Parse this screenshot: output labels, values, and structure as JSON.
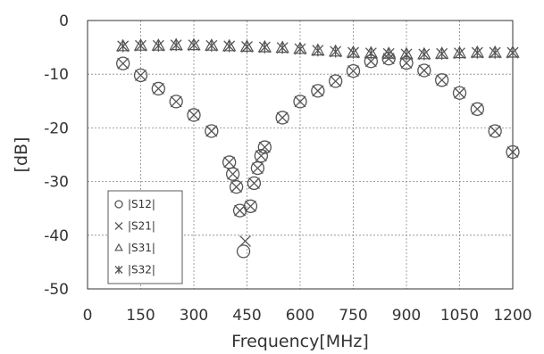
{
  "chart_data": {
    "type": "scatter",
    "title": "",
    "xlabel": "Frequency[MHz]",
    "ylabel": "[dB]",
    "xlim": [
      0,
      1200
    ],
    "ylim": [
      -50,
      0
    ],
    "xticks": [
      0,
      150,
      300,
      450,
      600,
      750,
      900,
      1050,
      1200
    ],
    "yticks": [
      0,
      -10,
      -20,
      -30,
      -40,
      -50
    ],
    "xtick_labels": [
      "0",
      "150",
      "300",
      "450",
      "600",
      "750",
      "900",
      "1050",
      "1200"
    ],
    "ytick_labels": [
      "0",
      "-10",
      "-20",
      "-30",
      "-40",
      "-50"
    ],
    "grid": "dashed",
    "legend_position": "bottom-left",
    "series": [
      {
        "name": "|S12|",
        "marker": "circle",
        "points": [
          [
            100,
            -8
          ],
          [
            150,
            -10.2
          ],
          [
            200,
            -12.7
          ],
          [
            250,
            -15.1
          ],
          [
            300,
            -17.6
          ],
          [
            350,
            -20.6
          ],
          [
            400,
            -26.4
          ],
          [
            410,
            -28.6
          ],
          [
            420,
            -31
          ],
          [
            430,
            -35.4
          ],
          [
            440,
            -43
          ],
          [
            460,
            -34.6
          ],
          [
            470,
            -30.3
          ],
          [
            480,
            -27.5
          ],
          [
            490,
            -25.2
          ],
          [
            500,
            -23.6
          ],
          [
            550,
            -18.1
          ],
          [
            600,
            -15.1
          ],
          [
            650,
            -13.1
          ],
          [
            700,
            -11.3
          ],
          [
            750,
            -9.4
          ],
          [
            800,
            -7.6
          ],
          [
            850,
            -7.1
          ],
          [
            900,
            -7.9
          ],
          [
            950,
            -9.3
          ],
          [
            1000,
            -11.1
          ],
          [
            1050,
            -13.5
          ],
          [
            1100,
            -16.5
          ],
          [
            1150,
            -20.6
          ],
          [
            1200,
            -24.5
          ]
        ]
      },
      {
        "name": "|S21|",
        "marker": "x",
        "points": [
          [
            100,
            -8
          ],
          [
            150,
            -10.2
          ],
          [
            200,
            -12.7
          ],
          [
            250,
            -15.1
          ],
          [
            300,
            -17.6
          ],
          [
            350,
            -20.6
          ],
          [
            400,
            -26.4
          ],
          [
            410,
            -28.6
          ],
          [
            420,
            -31
          ],
          [
            430,
            -35.4
          ],
          [
            445,
            -41.1
          ],
          [
            460,
            -34.6
          ],
          [
            470,
            -30.3
          ],
          [
            480,
            -27.5
          ],
          [
            490,
            -25.2
          ],
          [
            500,
            -23.6
          ],
          [
            550,
            -18.1
          ],
          [
            600,
            -15.1
          ],
          [
            650,
            -13.1
          ],
          [
            700,
            -11.3
          ],
          [
            750,
            -9.4
          ],
          [
            800,
            -7.6
          ],
          [
            850,
            -7.1
          ],
          [
            900,
            -7.9
          ],
          [
            950,
            -9.3
          ],
          [
            1000,
            -11.1
          ],
          [
            1050,
            -13.5
          ],
          [
            1100,
            -16.5
          ],
          [
            1150,
            -20.6
          ],
          [
            1200,
            -24.5
          ]
        ]
      },
      {
        "name": "|S31|",
        "marker": "triangle",
        "points": [
          [
            100,
            -4.8
          ],
          [
            150,
            -4.7
          ],
          [
            200,
            -4.7
          ],
          [
            250,
            -4.6
          ],
          [
            300,
            -4.6
          ],
          [
            350,
            -4.7
          ],
          [
            400,
            -4.8
          ],
          [
            450,
            -4.9
          ],
          [
            500,
            -5
          ],
          [
            550,
            -5.1
          ],
          [
            600,
            -5.3
          ],
          [
            650,
            -5.6
          ],
          [
            700,
            -5.8
          ],
          [
            750,
            -6
          ],
          [
            800,
            -6.1
          ],
          [
            850,
            -6.2
          ],
          [
            900,
            -6.3
          ],
          [
            950,
            -6.3
          ],
          [
            1000,
            -6.2
          ],
          [
            1050,
            -6.1
          ],
          [
            1100,
            -6
          ],
          [
            1150,
            -6
          ],
          [
            1200,
            -6
          ]
        ]
      },
      {
        "name": "|S32|",
        "marker": "asterisk",
        "points": [
          [
            100,
            -4.8
          ],
          [
            150,
            -4.7
          ],
          [
            200,
            -4.7
          ],
          [
            250,
            -4.6
          ],
          [
            300,
            -4.6
          ],
          [
            350,
            -4.7
          ],
          [
            400,
            -4.8
          ],
          [
            450,
            -4.9
          ],
          [
            500,
            -5
          ],
          [
            550,
            -5.1
          ],
          [
            600,
            -5.3
          ],
          [
            650,
            -5.6
          ],
          [
            700,
            -5.8
          ],
          [
            750,
            -6
          ],
          [
            800,
            -6.1
          ],
          [
            850,
            -6.2
          ],
          [
            900,
            -6.3
          ],
          [
            950,
            -6.3
          ],
          [
            1000,
            -6.2
          ],
          [
            1050,
            -6.1
          ],
          [
            1100,
            -6
          ],
          [
            1150,
            -6
          ],
          [
            1200,
            -6
          ]
        ]
      }
    ]
  }
}
